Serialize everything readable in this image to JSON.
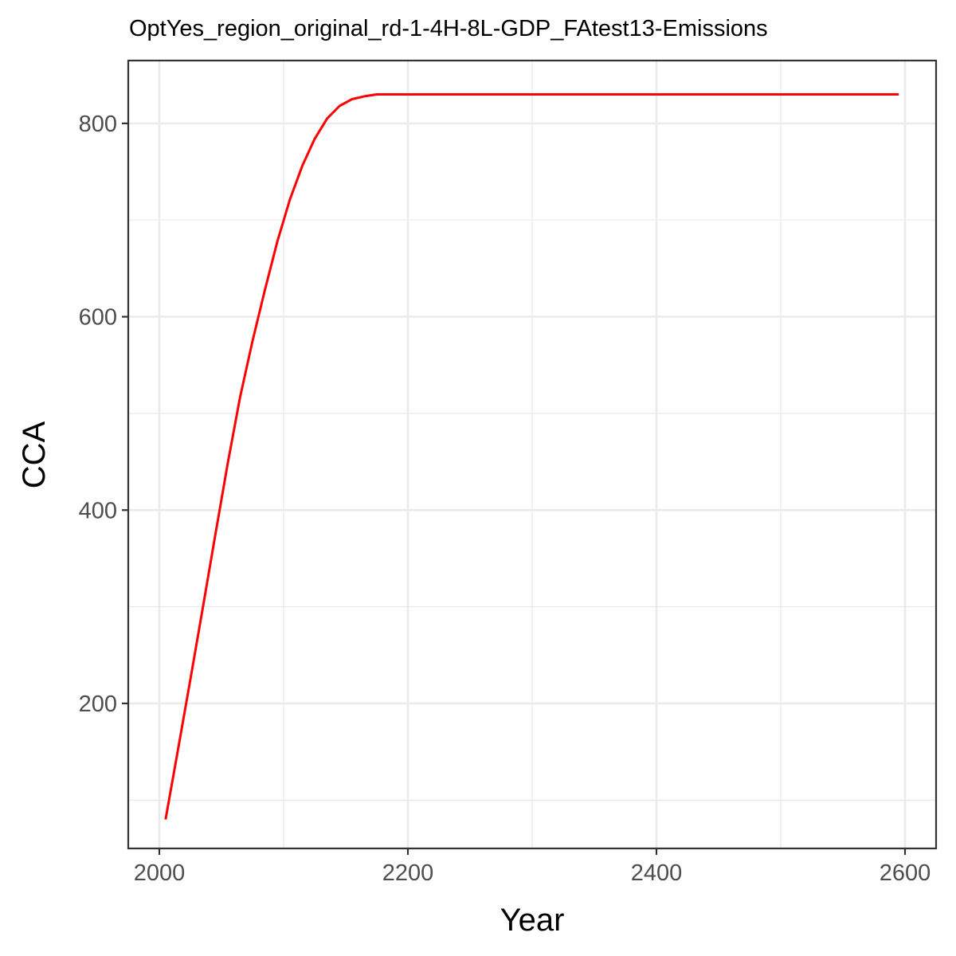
{
  "chart_data": {
    "type": "line",
    "title": "OptYes_region_original_rd-1-4H-8L-GDP_FAtest13-Emissions",
    "xlabel": "Year",
    "ylabel": "CCA",
    "xlim": [
      1975,
      2625
    ],
    "ylim": [
      50,
      865
    ],
    "x_ticks": [
      2000,
      2200,
      2400,
      2600
    ],
    "y_ticks": [
      200,
      400,
      600,
      800
    ],
    "x_minor_ticks": [
      2100,
      2300,
      2500
    ],
    "y_minor_ticks": [
      100,
      300,
      500,
      700
    ],
    "grid": true,
    "legend": "none",
    "series": [
      {
        "color": "#ff0000",
        "x": [
          2005,
          2015,
          2025,
          2035,
          2045,
          2055,
          2065,
          2075,
          2085,
          2095,
          2105,
          2115,
          2125,
          2135,
          2145,
          2155,
          2165,
          2175,
          2185,
          2195,
          2300,
          2400,
          2500,
          2595
        ],
        "y": [
          80,
          152,
          225,
          299,
          374,
          448,
          517,
          575,
          628,
          678,
          721,
          756,
          784,
          805,
          818,
          825,
          828,
          830,
          830,
          830,
          830,
          830,
          830,
          830
        ]
      }
    ]
  }
}
